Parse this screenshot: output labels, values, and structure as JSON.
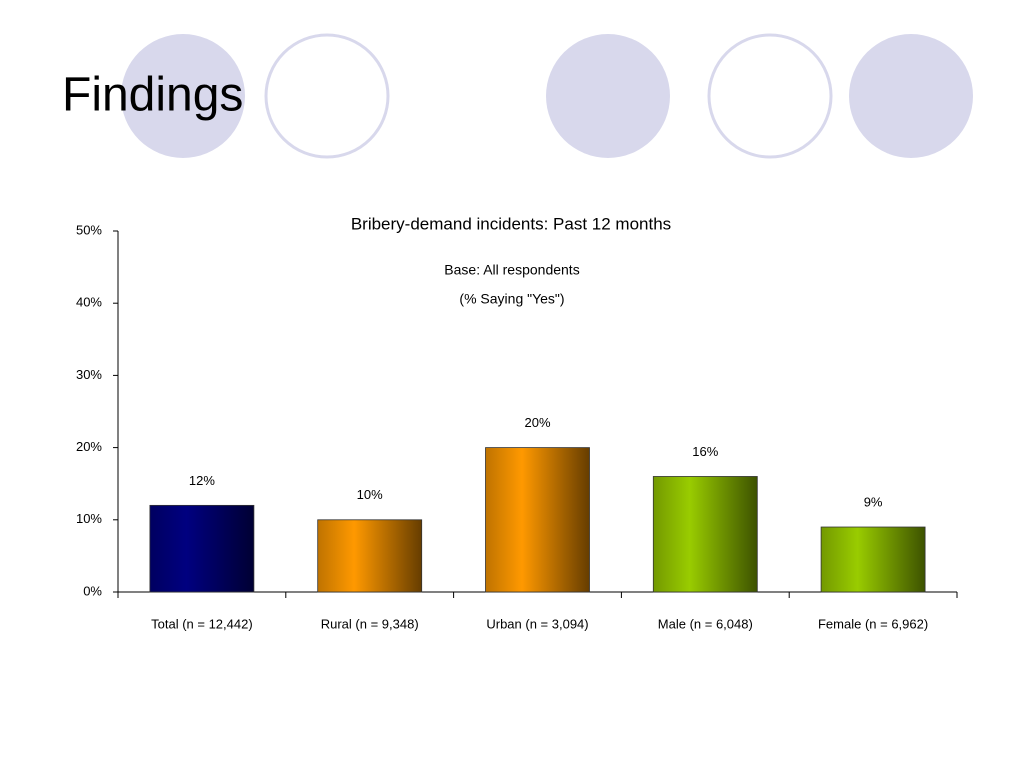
{
  "slide": {
    "title": "Findings"
  },
  "chart_data": {
    "type": "bar",
    "title": "Bribery-demand incidents: Past 12 months",
    "subtitle": [
      "Base: All respondents",
      "(% Saying \"Yes\")"
    ],
    "categories": [
      "Total (n = 12,442)",
      "Rural (n = 9,348)",
      "Urban (n = 3,094)",
      "Male (n = 6,048)",
      "Female (n = 6,962)"
    ],
    "values": [
      12,
      10,
      20,
      16,
      9
    ],
    "value_labels": [
      "12%",
      "10%",
      "20%",
      "16%",
      "9%"
    ],
    "colors": [
      "#000080",
      "#ff9900",
      "#ff9900",
      "#99cc00",
      "#99cc00"
    ],
    "ylim": [
      0,
      50
    ],
    "yticks": [
      {
        "value": 0,
        "label": "0%"
      },
      {
        "value": 10,
        "label": "10%"
      },
      {
        "value": 20,
        "label": "20%"
      },
      {
        "value": 30,
        "label": "30%"
      },
      {
        "value": 40,
        "label": "40%"
      },
      {
        "value": 50,
        "label": "50%"
      }
    ],
    "grid": false
  }
}
